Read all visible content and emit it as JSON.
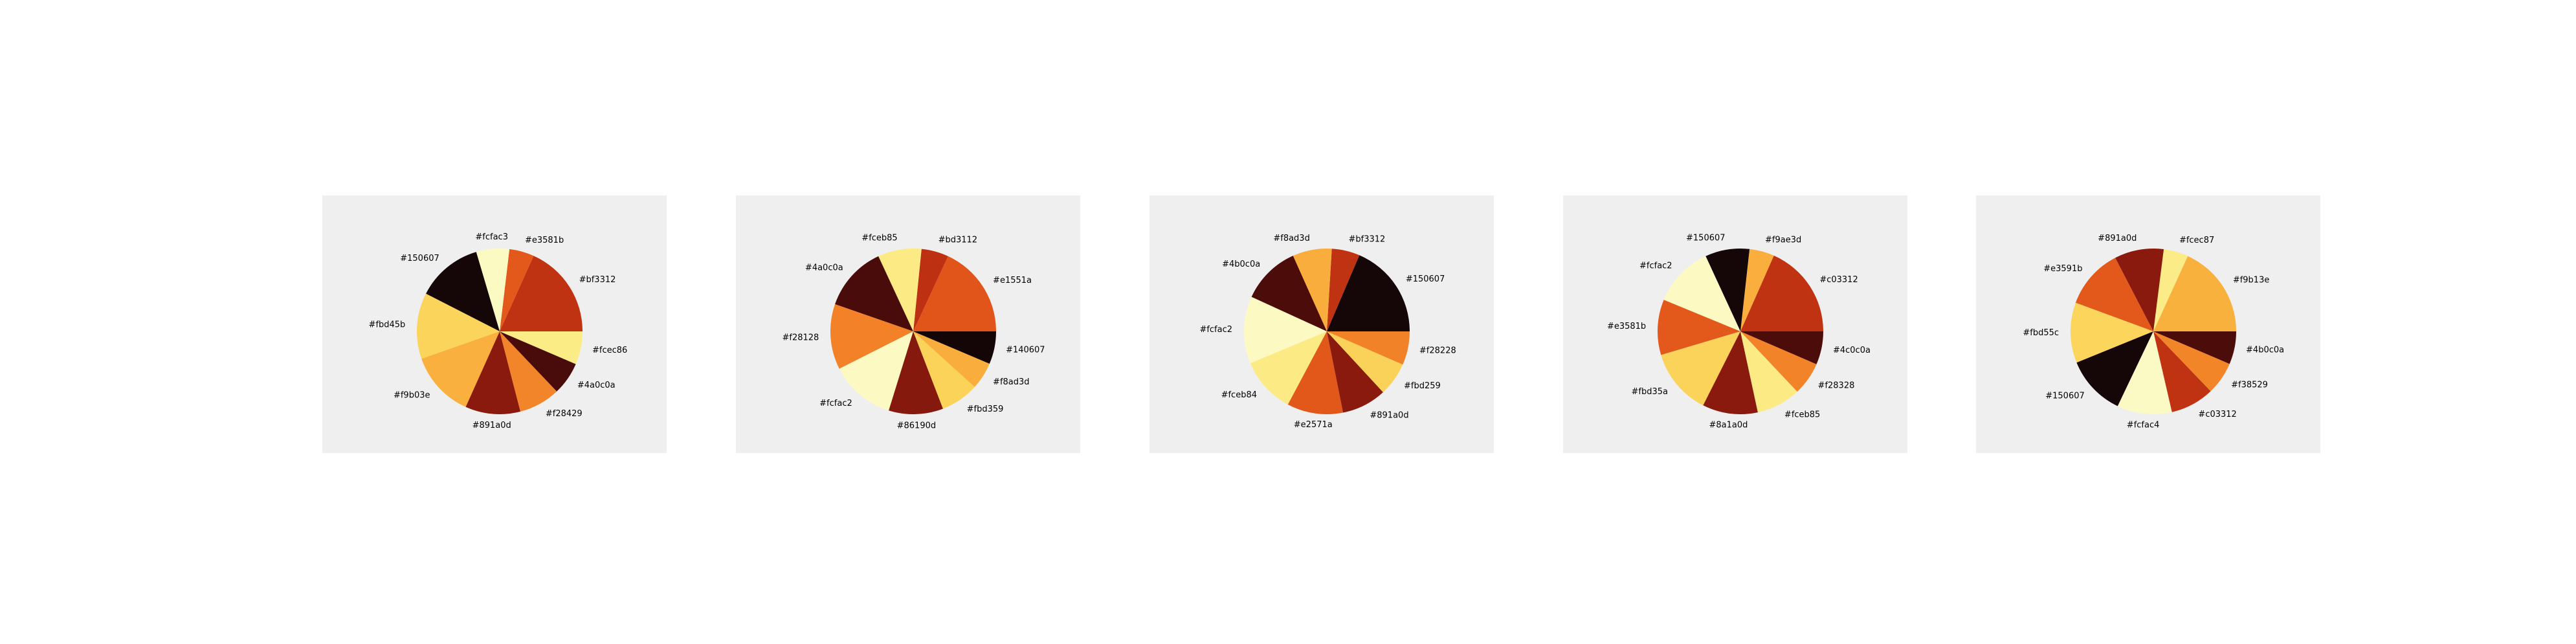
{
  "chart_data": [
    {
      "type": "pie",
      "slices": [
        {
          "label": "#bf3312",
          "color": "#bf3312",
          "value": 17
        },
        {
          "label": "#e3581b",
          "color": "#e3581b",
          "value": 4.5
        },
        {
          "label": "#fcfac3",
          "color": "#fcfac3",
          "value": 6
        },
        {
          "label": "#150607",
          "color": "#150607",
          "value": 12
        },
        {
          "label": "#fbd45b",
          "color": "#fbd45b",
          "value": 12
        },
        {
          "label": "#f9b03e",
          "color": "#f9b03e",
          "value": 12
        },
        {
          "label": "#891a0d",
          "color": "#891a0d",
          "value": 10
        },
        {
          "label": "#f28429",
          "color": "#f28429",
          "value": 7.5
        },
        {
          "label": "#4a0c0a",
          "color": "#4a0c0a",
          "value": 6
        },
        {
          "label": "#fcec86",
          "color": "#fcec86",
          "value": 6
        }
      ]
    },
    {
      "type": "pie",
      "slices": [
        {
          "label": "#e1551a",
          "color": "#e1551a",
          "value": 17
        },
        {
          "label": "#bd3112",
          "color": "#bd3112",
          "value": 5
        },
        {
          "label": "#fceb85",
          "color": "#fceb85",
          "value": 8
        },
        {
          "label": "#4a0c0a",
          "color": "#4a0c0a",
          "value": 12
        },
        {
          "label": "#f28128",
          "color": "#f28128",
          "value": 12
        },
        {
          "label": "#fcfac2",
          "color": "#fcfac2",
          "value": 12
        },
        {
          "label": "#86190d",
          "color": "#86190d",
          "value": 10
        },
        {
          "label": "#fbd359",
          "color": "#fbd359",
          "value": 7
        },
        {
          "label": "#f8ad3d",
          "color": "#f8ad3d",
          "value": 5
        },
        {
          "label": "#140607",
          "color": "#140607",
          "value": 6
        }
      ]
    },
    {
      "type": "pie",
      "slices": [
        {
          "label": "#150607",
          "color": "#150607",
          "value": 17
        },
        {
          "label": "#bf3312",
          "color": "#bf3312",
          "value": 5
        },
        {
          "label": "#f8ad3d",
          "color": "#f8ad3d",
          "value": 7
        },
        {
          "label": "#4b0c0a",
          "color": "#4b0c0a",
          "value": 10.5
        },
        {
          "label": "#fcfac2",
          "color": "#fcfac2",
          "value": 12
        },
        {
          "label": "#fceb84",
          "color": "#fceb84",
          "value": 10
        },
        {
          "label": "#e2571a",
          "color": "#e2571a",
          "value": 10
        },
        {
          "label": "#891a0d",
          "color": "#891a0d",
          "value": 8
        },
        {
          "label": "#fbd259",
          "color": "#fbd259",
          "value": 6
        },
        {
          "label": "#f28228",
          "color": "#f28228",
          "value": 6
        }
      ]
    },
    {
      "type": "pie",
      "slices": [
        {
          "label": "#c03312",
          "color": "#c03312",
          "value": 17
        },
        {
          "label": "#f9ae3d",
          "color": "#f9ae3d",
          "value": 4.5
        },
        {
          "label": "#150607",
          "color": "#150607",
          "value": 8
        },
        {
          "label": "#fcfac2",
          "color": "#fcfac2",
          "value": 11
        },
        {
          "label": "#e3581b",
          "color": "#e3581b",
          "value": 10
        },
        {
          "label": "#fbd35a",
          "color": "#fbd35a",
          "value": 12
        },
        {
          "label": "#8a1a0d",
          "color": "#8a1a0d",
          "value": 10
        },
        {
          "label": "#fceb85",
          "color": "#fceb85",
          "value": 8
        },
        {
          "label": "#f28328",
          "color": "#f28328",
          "value": 6
        },
        {
          "label": "#4c0c0a",
          "color": "#4c0c0a",
          "value": 6
        }
      ]
    },
    {
      "type": "pie",
      "slices": [
        {
          "label": "#f9b13e",
          "color": "#f9b13e",
          "value": 17
        },
        {
          "label": "#fcec87",
          "color": "#fcec87",
          "value": 4.5
        },
        {
          "label": "#891a0d",
          "color": "#891a0d",
          "value": 9
        },
        {
          "label": "#e3591b",
          "color": "#e3591b",
          "value": 11
        },
        {
          "label": "#fbd55c",
          "color": "#fbd55c",
          "value": 11
        },
        {
          "label": "#150607",
          "color": "#150607",
          "value": 11
        },
        {
          "label": "#fcfac4",
          "color": "#fcfac4",
          "value": 10
        },
        {
          "label": "#c03312",
          "color": "#c03312",
          "value": 8
        },
        {
          "label": "#f38529",
          "color": "#f38529",
          "value": 6
        },
        {
          "label": "#4b0c0a",
          "color": "#4b0c0a",
          "value": 6
        }
      ]
    }
  ]
}
